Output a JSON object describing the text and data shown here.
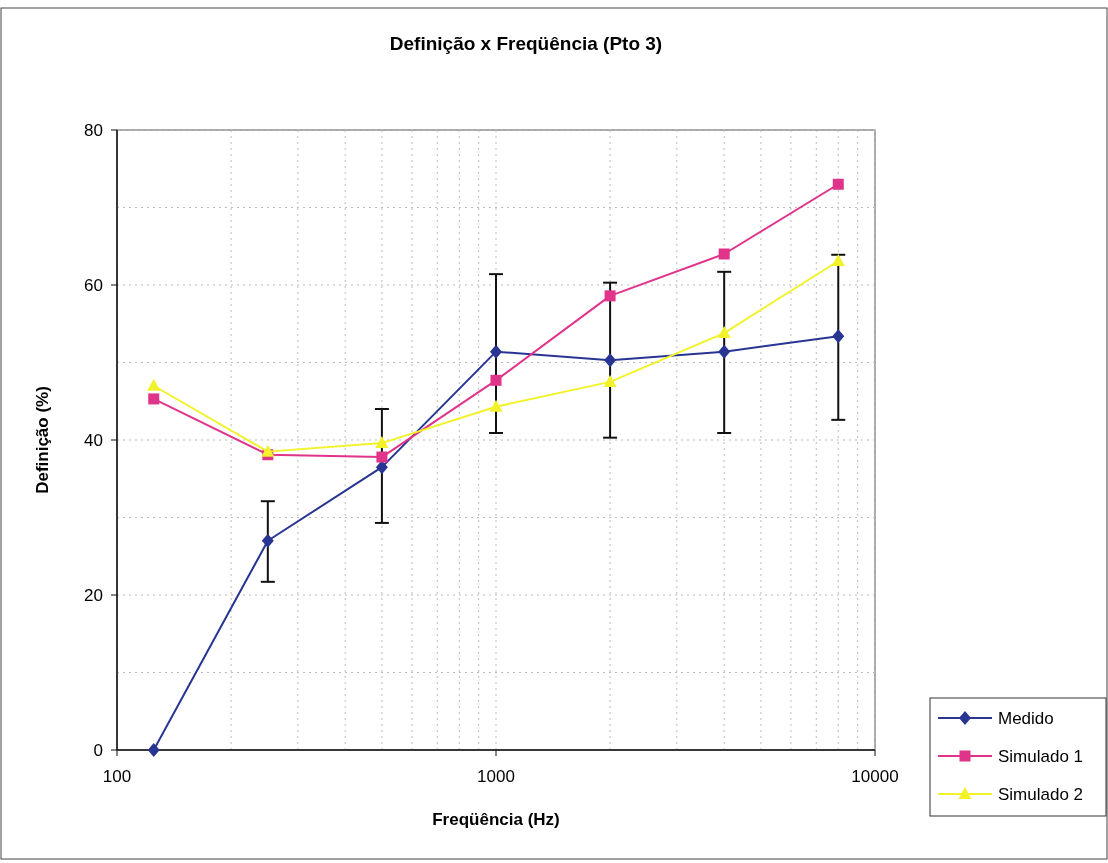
{
  "chart_data": {
    "type": "line",
    "title": "Definição x Freqüência (Pto 3)",
    "xlabel": "Freqüência (Hz)",
    "ylabel": "Definição (%)",
    "log": "x",
    "xlim": [
      100,
      10000
    ],
    "xticks": [
      100,
      {
        "value": 200,
        "label": null
      },
      {
        "value": 300,
        "label": null
      },
      {
        "value": 400,
        "label": null
      },
      {
        "value": 500,
        "label": null
      },
      {
        "value": 600,
        "label": null
      },
      {
        "value": 700,
        "label": null
      },
      {
        "value": 800,
        "label": null
      },
      {
        "value": 900,
        "label": null
      },
      1000,
      {
        "value": 2000,
        "label": null
      },
      {
        "value": 3000,
        "label": null
      },
      {
        "value": 4000,
        "label": null
      },
      {
        "value": 5000,
        "label": null
      },
      {
        "value": 6000,
        "label": null
      },
      {
        "value": 7000,
        "label": null
      },
      {
        "value": 8000,
        "label": null
      },
      {
        "value": 9000,
        "label": null
      },
      10000
    ],
    "ylim": [
      0,
      80
    ],
    "yticks": [
      0,
      {
        "value": 10,
        "label": null
      },
      20,
      {
        "value": 30,
        "label": null
      },
      40,
      {
        "value": 50,
        "label": null
      },
      60,
      {
        "value": 70,
        "label": null
      },
      80
    ],
    "grid": true,
    "legend": "bottom right",
    "x": [
      125,
      250,
      500,
      1000,
      2000,
      4000,
      8000
    ],
    "series": [
      {
        "name": "Medido",
        "color": "#283593",
        "marker": "diamond",
        "values": [
          0,
          27,
          36.5,
          51.4,
          50.3,
          51.4,
          53.4
        ],
        "errors": [
          null,
          [
            21.7,
            32.1
          ],
          [
            29.3,
            44.0
          ],
          [
            40.9,
            61.4
          ],
          [
            40.3,
            60.3
          ],
          [
            40.9,
            61.7
          ],
          [
            42.6,
            63.9
          ]
        ]
      },
      {
        "name": "Simulado 1",
        "color": "#e0338a",
        "marker": "square",
        "values": [
          45.3,
          38.1,
          37.8,
          47.7,
          58.6,
          64.0,
          73.0
        ]
      },
      {
        "name": "Simulado 2",
        "color": "#f2f22a",
        "marker": "triangle",
        "values": [
          47.0,
          38.5,
          39.6,
          44.3,
          47.5,
          53.8,
          63.1
        ]
      }
    ]
  }
}
